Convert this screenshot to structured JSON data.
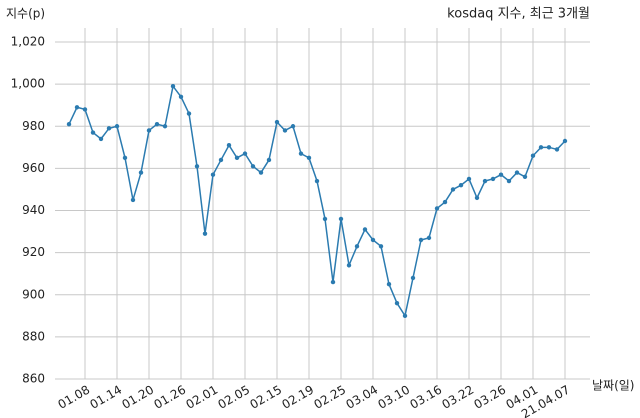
{
  "chart_data": {
    "type": "line",
    "title": "kosdaq 지수, 최근 3개월",
    "y_label": "지수(p)",
    "x_label": "날짜(일)",
    "categories": [
      null,
      null,
      "01.08",
      null,
      null,
      null,
      "01.14",
      null,
      null,
      null,
      "01.20",
      null,
      null,
      null,
      "01.26",
      null,
      null,
      null,
      "02.01",
      null,
      null,
      null,
      "02.05",
      null,
      null,
      null,
      "02.15",
      null,
      null,
      null,
      "02.19",
      null,
      null,
      null,
      "02.25",
      null,
      null,
      null,
      "03.04",
      null,
      null,
      null,
      "03.10",
      null,
      null,
      null,
      "03.16",
      null,
      null,
      null,
      "03.22",
      null,
      null,
      null,
      "03.26",
      null,
      null,
      null,
      "04.01",
      null,
      null,
      null,
      "21.04.07"
    ],
    "values": [
      981,
      989,
      988,
      977,
      974,
      979,
      980,
      965,
      945,
      958,
      978,
      981,
      980,
      999,
      994,
      986,
      961,
      929,
      957,
      964,
      971,
      965,
      967,
      961,
      958,
      964,
      982,
      978,
      980,
      967,
      965,
      954,
      936,
      906,
      936,
      914,
      923,
      931,
      926,
      923,
      905,
      896,
      890,
      908,
      926,
      927,
      941,
      944,
      950,
      952,
      955,
      946,
      954,
      955,
      957,
      954,
      958,
      956,
      966,
      970,
      970,
      969,
      973
    ],
    "color": "#2b7bb0",
    "ylim": [
      860,
      1020
    ],
    "yticks": [
      860,
      880,
      900,
      920,
      940,
      960,
      980,
      {
        "value": 1000,
        "label": "1,000"
      },
      {
        "value": 1020,
        "label": "1,020"
      }
    ],
    "grid": true
  }
}
